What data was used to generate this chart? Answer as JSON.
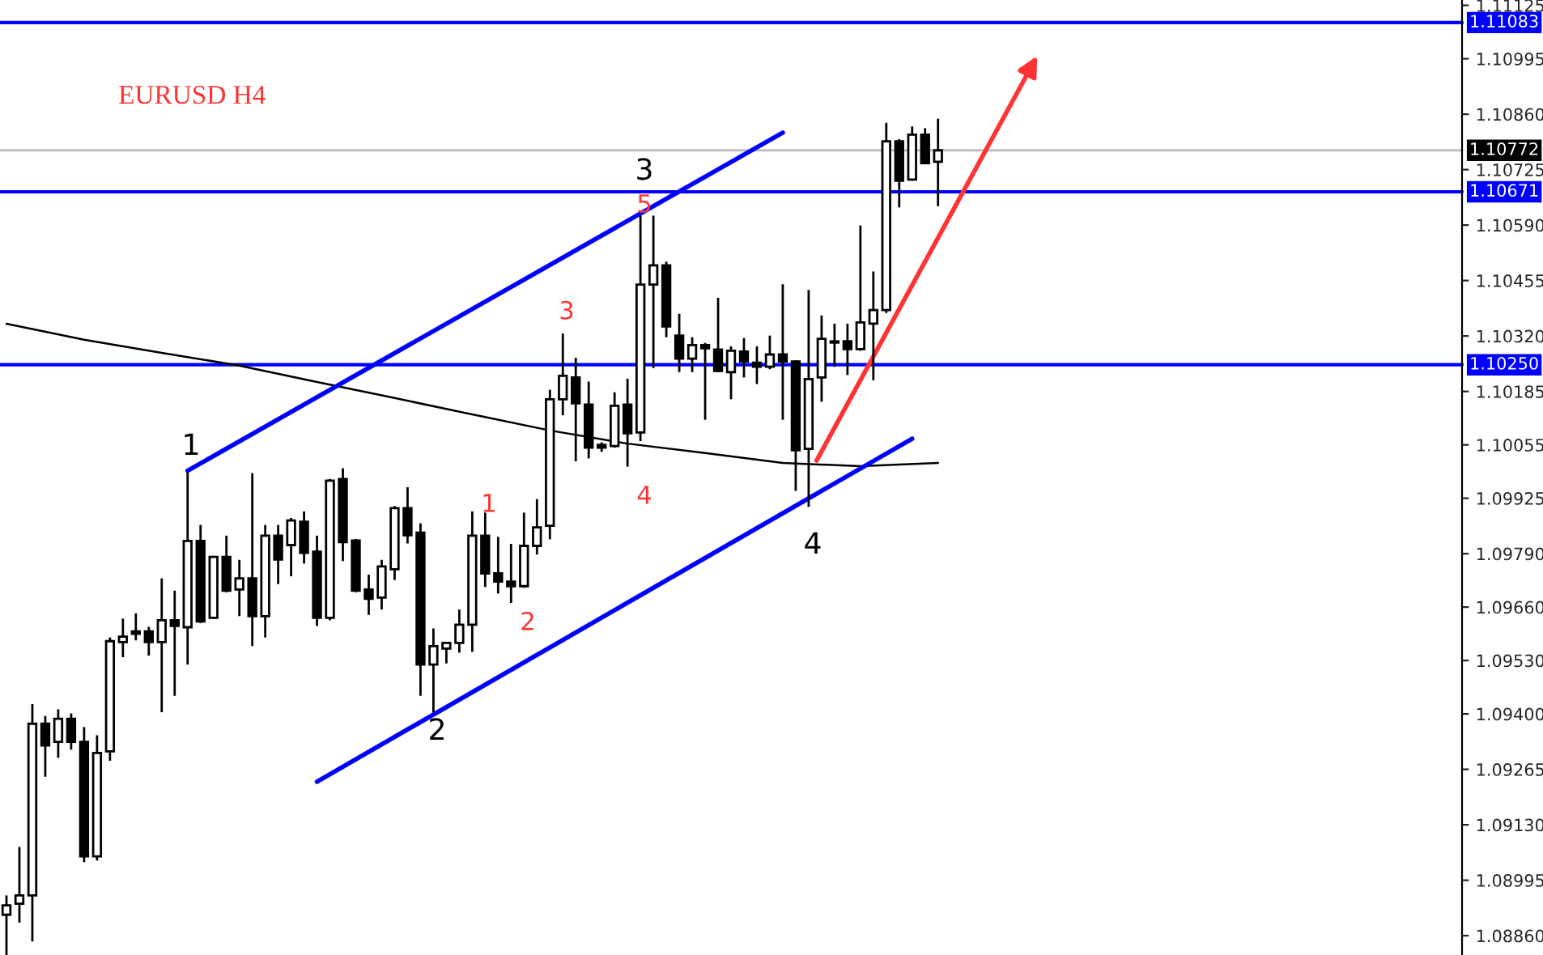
{
  "chart_data": {
    "type": "candlestick",
    "title": "EURUSD H4",
    "categories": [
      null,
      null,
      null,
      null,
      null,
      null,
      null,
      null,
      null,
      null,
      null,
      null,
      null,
      null,
      null,
      null,
      null,
      null,
      null,
      null,
      null,
      null,
      null,
      null,
      null,
      null,
      null,
      null,
      null,
      null,
      null,
      null,
      null,
      null,
      null,
      null,
      null,
      null,
      null,
      null,
      null,
      null,
      null,
      null,
      null,
      null,
      null,
      null,
      null,
      null,
      null,
      null,
      null,
      null,
      null,
      null,
      null,
      null,
      null,
      null,
      null,
      null,
      null,
      null,
      null,
      null,
      null,
      null,
      null,
      null,
      null,
      null,
      null,
      null,
      null,
      null,
      null,
      null,
      null,
      null,
      null,
      null,
      null,
      null,
      null,
      null,
      null,
      null,
      null,
      null,
      null,
      null,
      null,
      null,
      null,
      null,
      null,
      null,
      null,
      null,
      null,
      null,
      null,
      null,
      null,
      null,
      null,
      null,
      null,
      null,
      null,
      null,
      null
    ],
    "ohlc": [
      [
        1.08911,
        1.08958,
        1.08813,
        1.08934
      ],
      [
        1.08938,
        1.09076,
        1.08892,
        1.08958
      ],
      [
        1.08958,
        1.09424,
        1.08846,
        1.09376
      ],
      [
        1.09376,
        1.09395,
        1.09247,
        1.09323
      ],
      [
        1.09332,
        1.09411,
        1.09293,
        1.09388
      ],
      [
        1.09388,
        1.09401,
        1.09313,
        1.09332
      ],
      [
        1.09332,
        1.09368,
        1.09039,
        1.09053
      ],
      [
        1.09053,
        1.09348,
        1.09043,
        1.09305
      ],
      [
        1.09309,
        1.09586,
        1.09286,
        1.09577
      ],
      [
        1.09575,
        1.09632,
        1.09538,
        1.09588
      ],
      [
        1.09601,
        1.09645,
        1.09579,
        1.09595
      ],
      [
        1.09601,
        1.09612,
        1.09542,
        1.09575
      ],
      [
        1.09575,
        1.0973,
        1.09404,
        1.09628
      ],
      [
        1.09628,
        1.097,
        1.09444,
        1.09614
      ],
      [
        1.09611,
        1.09989,
        1.0952,
        1.09821
      ],
      [
        1.09821,
        1.0986,
        1.09621,
        1.09625
      ],
      [
        1.09634,
        1.09785,
        1.09631,
        1.09782
      ],
      [
        1.09782,
        1.09834,
        1.09696,
        1.097
      ],
      [
        1.09703,
        1.09775,
        1.09638,
        1.0973
      ],
      [
        1.0973,
        1.09986,
        1.09565,
        1.09638
      ],
      [
        1.09638,
        1.0986,
        1.09586,
        1.09834
      ],
      [
        1.09834,
        1.0986,
        1.09716,
        1.09776
      ],
      [
        1.09811,
        1.09877,
        1.09735,
        1.09871
      ],
      [
        1.09868,
        1.09893,
        1.09766,
        1.09792
      ],
      [
        1.09795,
        1.09834,
        1.09614,
        1.09634
      ],
      [
        1.09634,
        1.09972,
        1.09628,
        1.09968
      ],
      [
        1.09972,
        1.09998,
        1.09772,
        1.09818
      ],
      [
        1.09822,
        1.09826,
        1.09696,
        1.097
      ],
      [
        1.09703,
        1.09739,
        1.09641,
        1.0968
      ],
      [
        1.09683,
        1.09775,
        1.09654,
        1.09759
      ],
      [
        1.09752,
        1.09906,
        1.09726,
        1.09901
      ],
      [
        1.09901,
        1.09952,
        1.09815,
        1.09835
      ],
      [
        1.09841,
        1.09864,
        1.09444,
        1.0952
      ],
      [
        1.0952,
        1.09608,
        1.09404,
        1.09565
      ],
      [
        1.09559,
        1.09575,
        1.09523,
        1.09573
      ],
      [
        1.09573,
        1.09654,
        1.09549,
        1.09617
      ],
      [
        1.09617,
        1.09893,
        1.09551,
        1.09834
      ],
      [
        1.09834,
        1.0989,
        1.09709,
        1.09742
      ],
      [
        1.09742,
        1.09831,
        1.09693,
        1.09722
      ],
      [
        1.09722,
        1.09814,
        1.0967,
        1.09711
      ],
      [
        1.09711,
        1.0989,
        1.09707,
        1.09809
      ],
      [
        1.09809,
        1.09923,
        1.09788,
        1.09854
      ],
      [
        1.09858,
        1.10189,
        1.09825,
        1.10166
      ],
      [
        1.10166,
        1.10326,
        1.10127,
        1.10223
      ],
      [
        1.10219,
        1.10267,
        1.10015,
        1.10156
      ],
      [
        1.10153,
        1.10209,
        1.10022,
        1.10048
      ],
      [
        1.10055,
        1.10061,
        1.10038,
        1.10048
      ],
      [
        1.10052,
        1.10183,
        1.10048,
        1.1015
      ],
      [
        1.10153,
        1.10216,
        1.10002,
        1.10083
      ],
      [
        1.10085,
        1.10613,
        1.10064,
        1.10445
      ],
      [
        1.10445,
        1.10613,
        1.10242,
        1.10492
      ],
      [
        1.10492,
        1.10501,
        1.10317,
        1.10343
      ],
      [
        1.10321,
        1.10374,
        1.10232,
        1.10265
      ],
      [
        1.10265,
        1.10317,
        1.10232,
        1.10298
      ],
      [
        1.10298,
        1.10303,
        1.10116,
        1.1029
      ],
      [
        1.10287,
        1.10413,
        1.10232,
        1.10235
      ],
      [
        1.10232,
        1.10295,
        1.10166,
        1.10284
      ],
      [
        1.10282,
        1.10315,
        1.10219,
        1.10258
      ],
      [
        1.10255,
        1.10295,
        1.10203,
        1.10245
      ],
      [
        1.10245,
        1.10321,
        1.10239,
        1.10275
      ],
      [
        1.10275,
        1.10446,
        1.10116,
        1.10258
      ],
      [
        1.10258,
        1.10261,
        1.09943,
        1.10042
      ],
      [
        1.10045,
        1.10432,
        1.09904,
        1.10215
      ],
      [
        1.10219,
        1.1037,
        1.1016,
        1.10313
      ],
      [
        1.10304,
        1.1035,
        1.10245,
        1.10307
      ],
      [
        1.10307,
        1.1035,
        1.10225,
        1.10288
      ],
      [
        1.10288,
        1.10589,
        1.10284,
        1.10353
      ],
      [
        1.1035,
        1.10477,
        1.10212,
        1.10383
      ],
      [
        1.10383,
        1.10839,
        1.10376,
        1.10794
      ],
      [
        1.10794,
        1.10799,
        1.10633,
        1.10698
      ],
      [
        1.10701,
        1.1083,
        1.10698,
        1.1081
      ],
      [
        1.1081,
        1.10826,
        1.10738,
        1.10741
      ],
      [
        1.10744,
        1.10849,
        1.10636,
        1.10772
      ],
      null,
      null,
      null,
      null,
      null,
      null,
      null,
      null,
      null,
      null,
      null,
      null,
      null,
      null,
      null,
      null,
      null,
      null,
      null,
      null,
      null,
      null,
      null,
      null,
      null,
      null,
      null,
      null,
      null,
      null,
      null,
      null,
      null,
      null,
      null,
      null,
      null,
      null,
      null,
      null
    ],
    "series": [
      {
        "type": "line",
        "color": "#000000",
        "values": [
          1.1035,
          null,
          null,
          null,
          null,
          null,
          1.10311,
          null,
          null,
          null,
          null,
          null,
          1.10279,
          null,
          null,
          null,
          null,
          null,
          1.10248,
          null,
          null,
          null,
          null,
          null,
          1.10208,
          null,
          null,
          null,
          null,
          null,
          1.10169,
          null,
          null,
          null,
          null,
          null,
          1.10129,
          null,
          null,
          null,
          null,
          null,
          1.1009,
          null,
          null,
          null,
          null,
          null,
          1.10058,
          null,
          null,
          null,
          null,
          null,
          1.10035,
          null,
          null,
          null,
          null,
          null,
          1.10011,
          null,
          null,
          null,
          null,
          null,
          1.10003,
          null,
          null,
          null,
          null,
          null,
          1.10011,
          null,
          null,
          null,
          null,
          null,
          null,
          null,
          null,
          null,
          null,
          null,
          null,
          null,
          null,
          null,
          null,
          null,
          null,
          null,
          null,
          null,
          null,
          null,
          null,
          null,
          null,
          null,
          null,
          null,
          null,
          null,
          null,
          null,
          null,
          null,
          null,
          null,
          null,
          null,
          null
        ]
      },
      {
        "type": "line",
        "color": "#0000ff",
        "values": [
          null,
          null,
          null,
          null,
          null,
          null,
          null,
          null,
          null,
          null,
          null,
          null,
          null,
          null,
          1.09992,
          null,
          null,
          null,
          null,
          null,
          null,
          null,
          null,
          null,
          null,
          null,
          null,
          null,
          null,
          null,
          null,
          null,
          null,
          null,
          null,
          null,
          null,
          null,
          null,
          null,
          null,
          null,
          null,
          null,
          null,
          null,
          null,
          null,
          null,
          null,
          null,
          null,
          null,
          null,
          null,
          null,
          null,
          null,
          null,
          null,
          1.10815,
          null,
          null,
          null,
          null,
          null,
          null,
          null,
          null,
          null,
          null,
          null,
          null,
          null,
          null,
          null,
          null,
          null,
          null,
          null,
          null,
          null,
          null,
          null,
          null,
          null,
          null,
          null,
          null,
          null,
          null,
          null,
          null,
          null,
          null,
          null,
          null,
          null,
          null,
          null,
          null,
          null,
          null,
          null,
          null,
          null,
          null,
          null,
          null,
          null,
          null,
          null,
          null
        ]
      },
      {
        "type": "line",
        "color": "#0000ff",
        "values": [
          null,
          null,
          null,
          null,
          null,
          null,
          null,
          null,
          null,
          null,
          null,
          null,
          null,
          null,
          null,
          null,
          null,
          null,
          null,
          null,
          null,
          null,
          null,
          null,
          1.09235,
          null,
          null,
          null,
          null,
          null,
          null,
          null,
          null,
          null,
          null,
          null,
          null,
          null,
          null,
          null,
          null,
          null,
          null,
          null,
          null,
          null,
          null,
          null,
          null,
          null,
          null,
          null,
          null,
          null,
          null,
          null,
          null,
          null,
          null,
          null,
          null,
          null,
          null,
          null,
          null,
          null,
          null,
          null,
          null,
          null,
          1.1007,
          null,
          null,
          null,
          null,
          null,
          null,
          null,
          null,
          null,
          null,
          null,
          null,
          null,
          null,
          null,
          null,
          null,
          null,
          null,
          null,
          null,
          null,
          null,
          null,
          null,
          null,
          null,
          null,
          null,
          null,
          null,
          null,
          null,
          null,
          null,
          null,
          null,
          null,
          null,
          null,
          null,
          null
        ]
      }
    ],
    "ref_lines": [
      {
        "axis": "y",
        "value": 1.11083,
        "label": "1.11083",
        "color": "#0000ff"
      },
      {
        "axis": "y",
        "value": 1.10772,
        "label": "1.10772",
        "color": "#c0c0c0"
      },
      {
        "axis": "y",
        "value": 1.10671,
        "label": "1.10671",
        "color": "#0000ff"
      },
      {
        "axis": "y",
        "value": 1.1025,
        "label": "1.10250",
        "color": "#0000ff"
      }
    ],
    "annotations": [
      "1",
      "2",
      "3",
      "4",
      "1",
      "2",
      "3",
      "4",
      "5"
    ],
    "ylim": [
      1.08813,
      1.11138
    ],
    "yticks": [
      {
        "value": 1.11125,
        "label": "1.11125"
      },
      {
        "value": 1.10995,
        "label": "1.10995"
      },
      {
        "value": 1.1086,
        "label": "1.10860"
      },
      {
        "value": 1.10725,
        "label": "1.10725"
      },
      {
        "value": 1.1059,
        "label": "1.10590"
      },
      {
        "value": 1.10455,
        "label": "1.10455"
      },
      {
        "value": 1.1032,
        "label": "1.10320"
      },
      {
        "value": 1.10185,
        "label": "1.10185"
      },
      {
        "value": 1.10055,
        "label": "1.10055"
      },
      {
        "value": 1.09925,
        "label": "1.09925"
      },
      {
        "value": 1.0979,
        "label": "1.09790"
      },
      {
        "value": 1.0966,
        "label": "1.09660"
      },
      {
        "value": 1.0953,
        "label": "1.09530"
      },
      {
        "value": 1.094,
        "label": "1.09400"
      },
      {
        "value": 1.09265,
        "label": "1.09265"
      },
      {
        "value": 1.0913,
        "label": "1.09130"
      },
      {
        "value": 1.08995,
        "label": "1.08995"
      },
      {
        "value": 1.0886,
        "label": "1.08860"
      }
    ],
    "tick_labels": "y",
    "grid": false,
    "legend": false
  }
}
